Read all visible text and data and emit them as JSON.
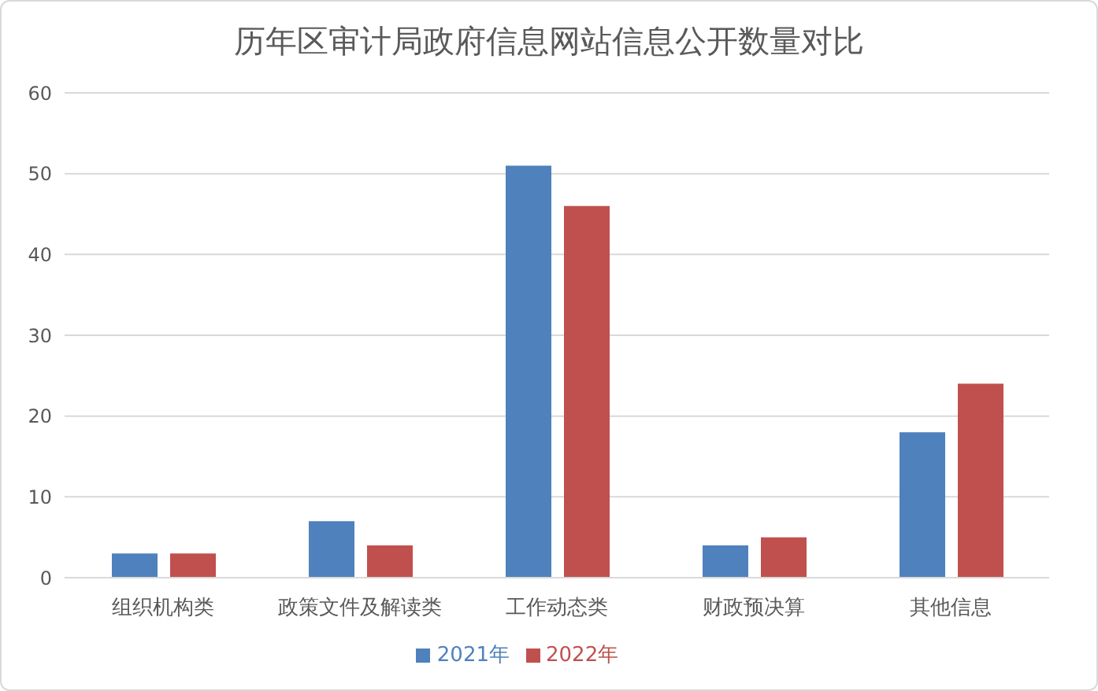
{
  "chart_data": {
    "type": "bar",
    "title": "历年区审计局政府信息网站信息公开数量对比",
    "categories": [
      "组织机构类",
      "政策文件及解读类",
      "工作动态类",
      "财政预决算",
      "其他信息"
    ],
    "series": [
      {
        "name": "2021年",
        "color": "#4f81bd",
        "values": [
          3,
          7,
          51,
          4,
          18
        ]
      },
      {
        "name": "2022年",
        "color": "#c0504d",
        "values": [
          3,
          4,
          46,
          5,
          24
        ]
      }
    ],
    "ylim": [
      0,
      60
    ],
    "yticks": [
      0,
      10,
      20,
      30,
      40,
      50,
      60
    ],
    "grid": "y",
    "legend": "bottom"
  }
}
